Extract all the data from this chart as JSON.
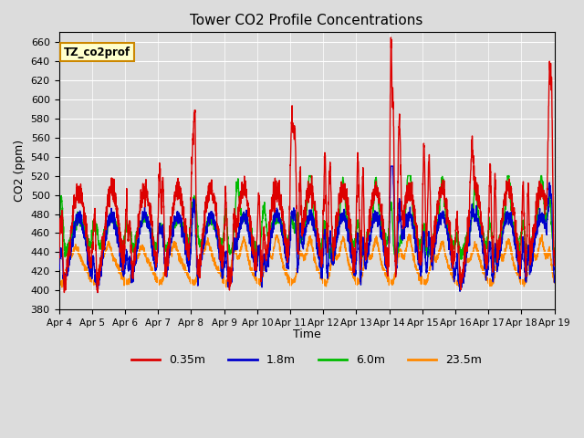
{
  "title": "Tower CO2 Profile Concentrations",
  "xlabel": "Time",
  "ylabel": "CO2 (ppm)",
  "ylim": [
    380,
    670
  ],
  "annotation_text": "TZ_co2prof",
  "annotation_bg": "#FFFFCC",
  "annotation_border": "#CC8800",
  "bg_color": "#DCDCDC",
  "plot_bg": "#DCDCDC",
  "n_points": 3000,
  "xtick_labels": [
    "Apr 4",
    "Apr 5",
    "Apr 6",
    "Apr 7",
    "Apr 8",
    "Apr 9",
    "Apr 10",
    "Apr 11",
    "Apr 12",
    "Apr 13",
    "Apr 14",
    "Apr 15",
    "Apr 16",
    "Apr 17",
    "Apr 18",
    "Apr 19"
  ],
  "legend_labels": [
    "0.35m",
    "1.8m",
    "6.0m",
    "23.5m"
  ],
  "legend_colors": [
    "#DD0000",
    "#0000CC",
    "#00BB00",
    "#FF8800"
  ]
}
